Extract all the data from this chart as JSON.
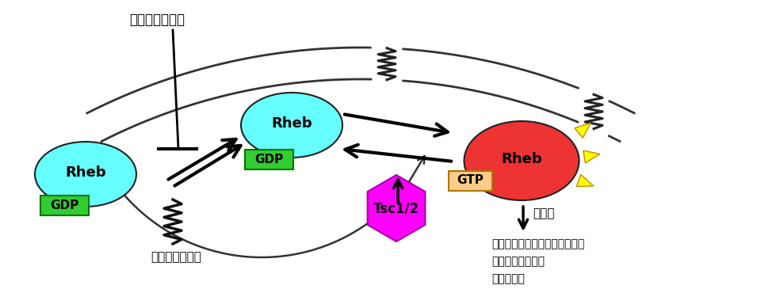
{
  "bg_color": "#ffffff",
  "rheb_left_color": "#66ffff",
  "rheb_center_color": "#66ffff",
  "rheb_right_color": "#ee3333",
  "gdp_color": "#33cc33",
  "gtp_color": "#ffcc88",
  "tsc_color": "#ff00ff",
  "triangle_color": "#ffff00",
  "membrane_color": "#333333",
  "arrow_color": "#000000",
  "label_ronafarnib": "ロナファルニブ",
  "label_farnesiyl": "ファルネシル基",
  "label_kasseika": "活性化",
  "label_effects": [
    "・樹状突起スパインの形態変化",
    "・神経活動の異常",
    "・記憶異常"
  ],
  "figsize": [
    9.6,
    3.65
  ],
  "dpi": 100
}
